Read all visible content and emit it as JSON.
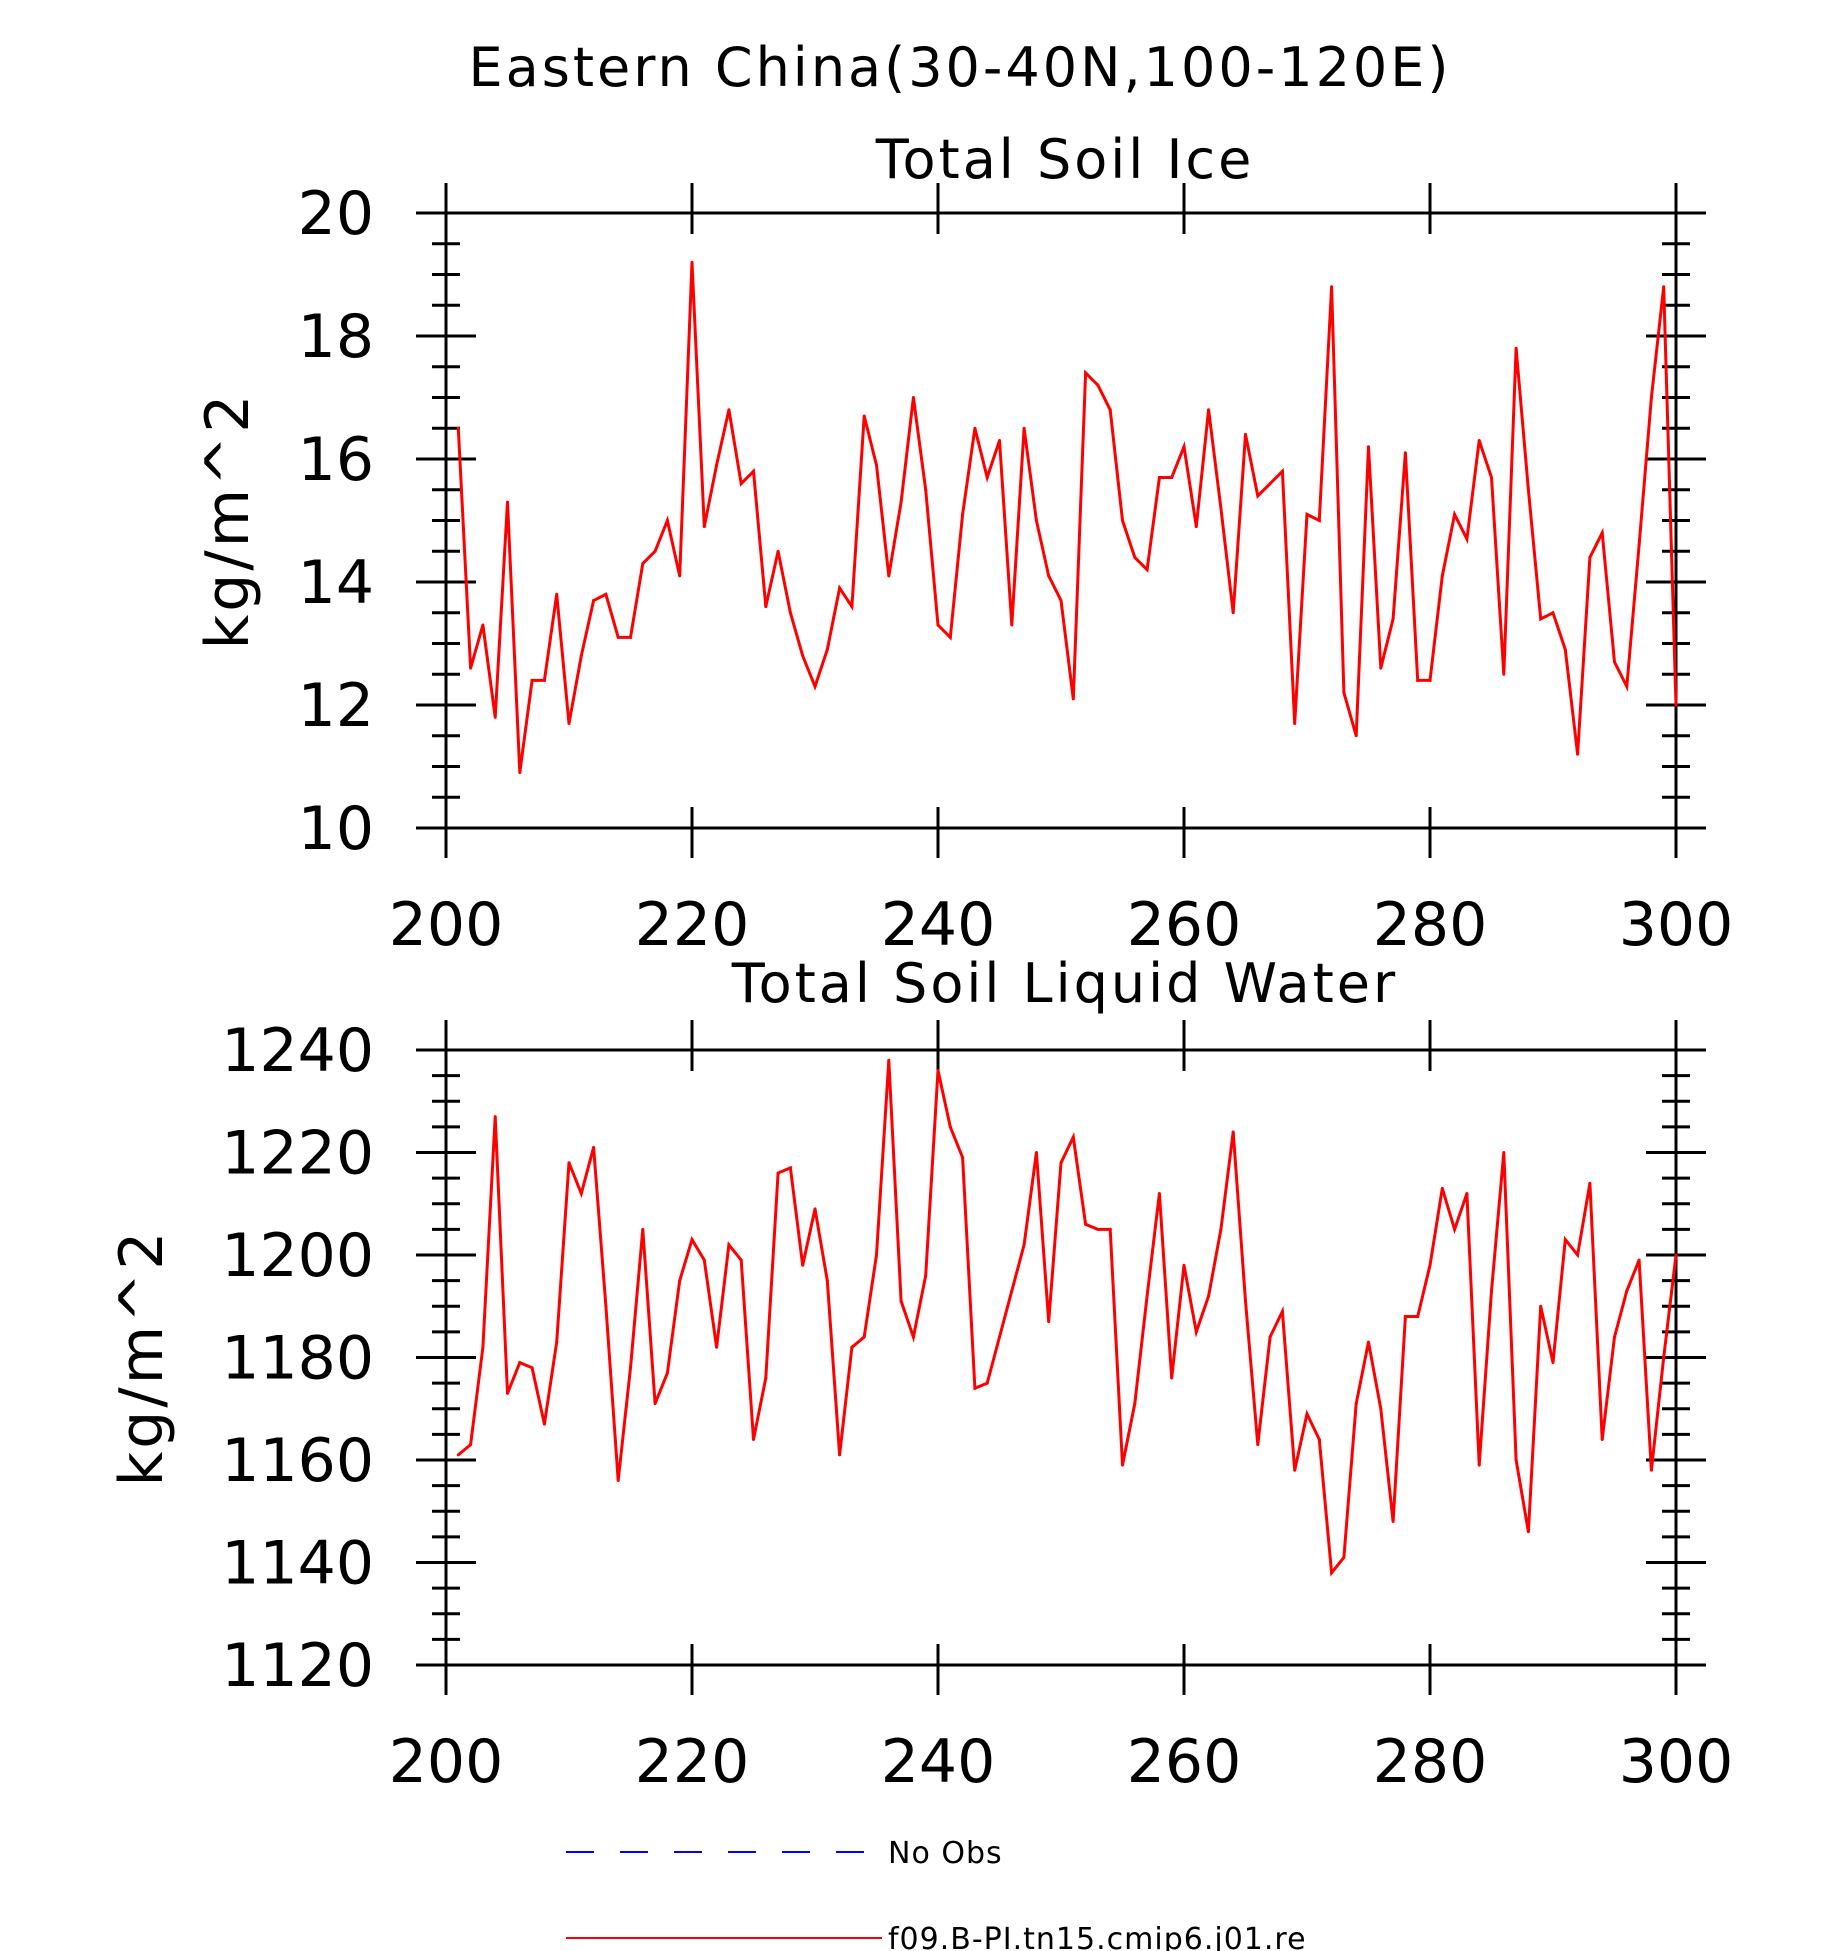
{
  "figure_title": "Eastern China(30-40N,100-120E)",
  "colors": {
    "model": "#ff0000",
    "obs": "#0000ff",
    "axis": "#000000"
  },
  "legend": [
    {
      "label": "No Obs",
      "style": "dashed",
      "color": "#0000ff"
    },
    {
      "label": "f09.B-PI.tn15.cmip6.j01.re",
      "style": "solid",
      "color": "#ff0000"
    }
  ],
  "chart_data": [
    {
      "type": "line",
      "title": "Total Soil Ice",
      "ylabel": "kg/m^2",
      "xlim": [
        200,
        300
      ],
      "ylim": [
        10,
        20
      ],
      "xticks": [
        200,
        220,
        240,
        260,
        280,
        300
      ],
      "yticks": [
        10,
        12,
        14,
        16,
        18,
        20
      ],
      "x_start": 201,
      "series": [
        {
          "name": "f09.B-PI.tn15.cmip6.j01.re",
          "values": [
            16.5,
            12.6,
            13.3,
            11.8,
            15.3,
            10.9,
            12.4,
            12.4,
            13.8,
            11.7,
            12.8,
            13.7,
            13.8,
            13.1,
            13.1,
            14.3,
            14.5,
            15.0,
            14.1,
            19.2,
            14.9,
            15.9,
            16.8,
            15.6,
            15.8,
            13.6,
            14.5,
            13.5,
            12.8,
            12.3,
            12.9,
            13.9,
            13.6,
            16.7,
            15.9,
            14.1,
            15.3,
            17.0,
            15.5,
            13.3,
            13.1,
            15.1,
            16.5,
            15.7,
            16.3,
            13.3,
            16.5,
            15.0,
            14.1,
            13.7,
            12.1,
            17.4,
            17.2,
            16.8,
            15.0,
            14.4,
            14.2,
            15.7,
            15.7,
            16.2,
            14.9,
            16.8,
            15.2,
            13.5,
            16.4,
            15.4,
            15.6,
            15.8,
            11.7,
            15.1,
            15.0,
            18.8,
            12.2,
            11.5,
            16.2,
            12.6,
            13.4,
            16.1,
            12.4,
            12.4,
            14.1,
            15.1,
            14.7,
            16.3,
            15.7,
            12.5,
            17.8,
            15.5,
            13.4,
            13.5,
            12.9,
            11.2,
            14.4,
            14.8,
            12.7,
            12.3,
            14.6,
            17.0,
            18.8,
            12.0
          ]
        }
      ]
    },
    {
      "type": "line",
      "title": "Total Soil Liquid Water",
      "ylabel": "kg/m^2",
      "xlim": [
        200,
        300
      ],
      "ylim": [
        1120,
        1240
      ],
      "xticks": [
        200,
        220,
        240,
        260,
        280,
        300
      ],
      "yticks": [
        1120,
        1140,
        1160,
        1180,
        1200,
        1220,
        1240
      ],
      "x_start": 201,
      "series": [
        {
          "name": "f09.B-PI.tn15.cmip6.j01.re",
          "values": [
            1161,
            1163,
            1182,
            1227,
            1173,
            1179,
            1178,
            1167,
            1183,
            1218,
            1212,
            1221,
            1190,
            1156,
            1178,
            1205,
            1171,
            1177,
            1195,
            1203,
            1199,
            1182,
            1202,
            1199,
            1164,
            1176,
            1216,
            1217,
            1198,
            1209,
            1195,
            1161,
            1182,
            1184,
            1200,
            1238,
            1191,
            1184,
            1196,
            1236,
            1225,
            1219,
            1174,
            1175,
            1184,
            1193,
            1202,
            1220,
            1187,
            1218,
            1223,
            1206,
            1205,
            1205,
            1159,
            1171,
            1192,
            1212,
            1176,
            1198,
            1185,
            1192,
            1205,
            1224,
            1191,
            1163,
            1184,
            1189,
            1158,
            1169,
            1164,
            1138,
            1141,
            1171,
            1183,
            1170,
            1148,
            1188,
            1188,
            1198,
            1213,
            1205,
            1212,
            1159,
            1193,
            1220,
            1160,
            1146,
            1190,
            1179,
            1203,
            1200,
            1214,
            1164,
            1184,
            1193,
            1199,
            1158,
            1180,
            1200
          ]
        }
      ]
    }
  ]
}
